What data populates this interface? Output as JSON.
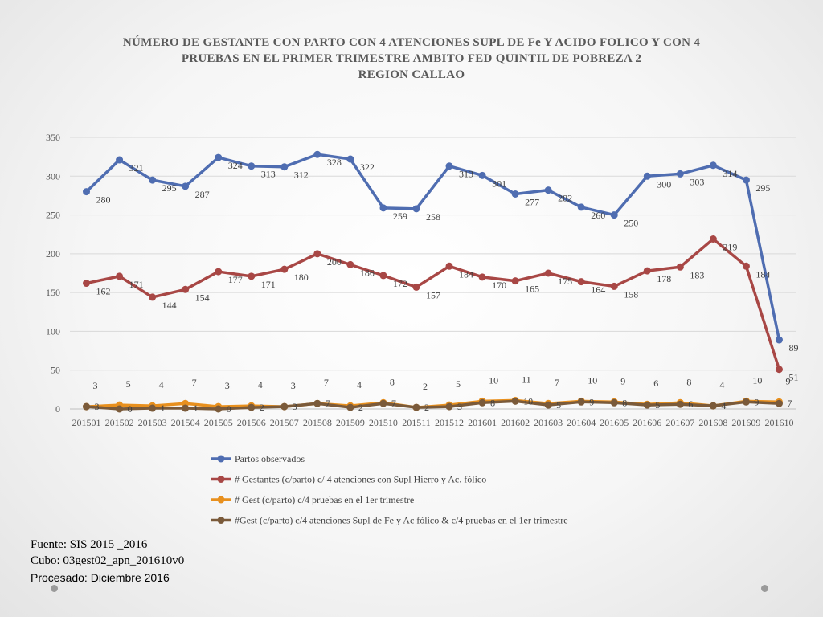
{
  "chart_data": {
    "type": "line",
    "title_lines": [
      "NÚMERO DE GESTANTE  CON PARTO CON 4 ATENCIONES SUPL DE Fe Y ACIDO FOLICO  Y CON 4",
      "PRUEBAS EN EL PRIMER TRIMESTRE AMBITO FED QUINTIL DE POBREZA  2",
      "REGION CALLAO"
    ],
    "categories": [
      "201501",
      "201502",
      "201503",
      "201504",
      "201505",
      "201506",
      "201507",
      "201508",
      "201509",
      "201510",
      "201511",
      "201512",
      "201601",
      "201602",
      "201603",
      "201604",
      "201605",
      "201606",
      "201607",
      "201608",
      "201609",
      "201610"
    ],
    "y_ticks": [
      "0",
      "50",
      "100",
      "150",
      "200",
      "250",
      "300",
      "350"
    ],
    "ylim": [
      0,
      350
    ],
    "grid": true,
    "legend_position": "bottom",
    "series": [
      {
        "name": "Partos observados",
        "color": "#4F6DB1",
        "values": [
          280,
          321,
          295,
          287,
          324,
          313,
          312,
          328,
          322,
          259,
          258,
          313,
          301,
          277,
          282,
          260,
          250,
          300,
          303,
          314,
          295,
          89
        ]
      },
      {
        "name": "# Gestantes (c/parto) c/ 4 atenciones con Supl Hierro y Ac. fólico",
        "color": "#A84745",
        "values": [
          162,
          171,
          144,
          154,
          177,
          171,
          180,
          200,
          186,
          172,
          157,
          184,
          170,
          165,
          175,
          164,
          158,
          178,
          183,
          219,
          184,
          51
        ]
      },
      {
        "name": "# Gest (c/parto) c/4 pruebas en el 1er trimestre",
        "color": "#E8901E",
        "values": [
          3,
          5,
          4,
          7,
          3,
          4,
          3,
          7,
          4,
          8,
          2,
          5,
          10,
          11,
          7,
          10,
          9,
          6,
          8,
          4,
          10,
          9
        ]
      },
      {
        "name": "#Gest (c/parto) c/4 atenciones Supl de Fe y Ac fólico & c/4 pruebas en el 1er trimestre",
        "color": "#7A5A3A",
        "values": [
          3,
          0,
          1,
          1,
          0,
          2,
          3,
          7,
          2,
          7,
          2,
          3,
          8,
          10,
          5,
          9,
          8,
          5,
          6,
          4,
          9,
          7
        ]
      }
    ]
  },
  "footer": {
    "source": "Fuente: SIS 2015 _2016",
    "cube": "Cubo: 03gest02_apn_201610v0",
    "processed": "Procesado: Diciembre 2016"
  }
}
